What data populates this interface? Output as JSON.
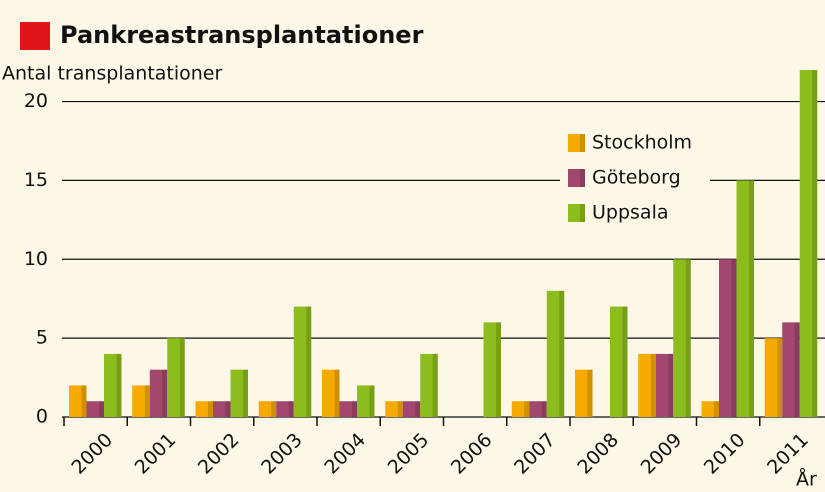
{
  "chart_data": {
    "type": "bar",
    "title": "Pankreastransplantationer",
    "y_label": "Antal transplantationer",
    "x_label": "År",
    "categories": [
      "2000",
      "2001",
      "2002",
      "2003",
      "2004",
      "2005",
      "2006",
      "2007",
      "2008",
      "2009",
      "2010",
      "2011"
    ],
    "series": [
      {
        "name": "Stockholm",
        "color": "#f6aa00",
        "values": [
          2,
          2,
          1,
          1,
          3,
          1,
          0,
          1,
          3,
          4,
          1,
          5
        ]
      },
      {
        "name": "Göteborg",
        "color": "#a2476e",
        "values": [
          1,
          3,
          1,
          1,
          1,
          1,
          0,
          1,
          0,
          4,
          10,
          6
        ]
      },
      {
        "name": "Uppsala",
        "color": "#8dbd1c",
        "values": [
          4,
          5,
          3,
          7,
          2,
          4,
          6,
          8,
          7,
          10,
          15,
          22
        ]
      }
    ],
    "ylim": [
      0,
      22
    ],
    "yticks": [
      0,
      5,
      10,
      15,
      20
    ],
    "grid": true
  }
}
